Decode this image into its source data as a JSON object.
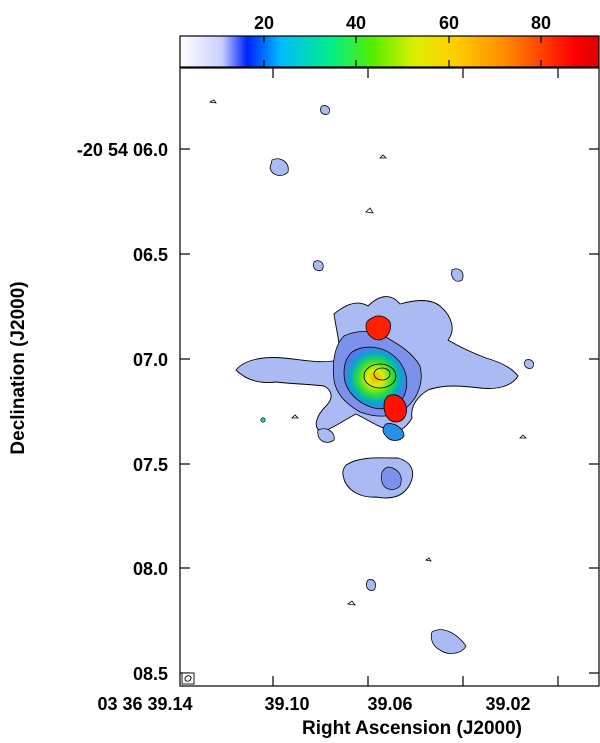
{
  "colorbar": {
    "tick_labels": [
      "20",
      "40",
      "60",
      "80"
    ],
    "colors": [
      "#ffffff",
      "#0033ff",
      "#00ccff",
      "#00ff66",
      "#ccff00",
      "#ffdd00",
      "#ff8800",
      "#ff1100"
    ]
  },
  "axes": {
    "xlabel": "Right Ascension (J2000)",
    "ylabel": "Declination (J2000)",
    "x_tick_labels": [
      "03 36 39.14",
      "39.10",
      "39.06",
      "39.02"
    ],
    "y_tick_labels": [
      "-20 54 06.0",
      "06.5",
      "07.0",
      "07.5",
      "08.0",
      "08.5"
    ]
  },
  "beam_symbol": "beam-ellipse-icon"
}
